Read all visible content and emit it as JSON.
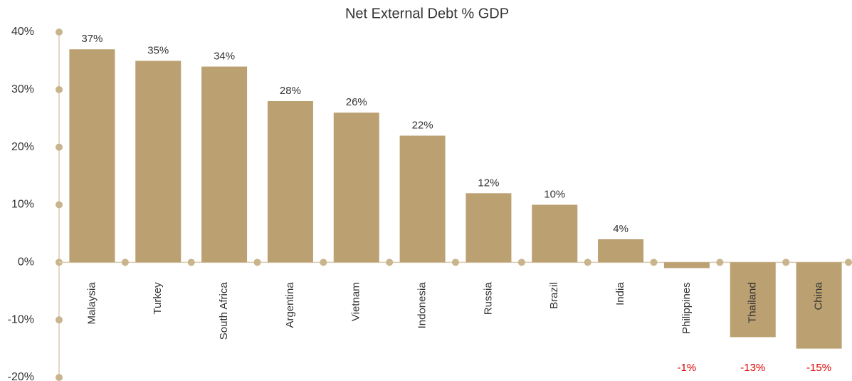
{
  "chart_data": {
    "type": "bar",
    "title": "Net External Debt % GDP",
    "categories": [
      "Malaysia",
      "Turkey",
      "South Africa",
      "Argentina",
      "Vietnam",
      "Indonesia",
      "Russia",
      "Brazil",
      "India",
      "Philippines",
      "Thailand",
      "China"
    ],
    "values": [
      37,
      35,
      34,
      28,
      26,
      22,
      12,
      10,
      4,
      -1,
      -13,
      -15
    ],
    "value_labels": [
      "37%",
      "35%",
      "34%",
      "28%",
      "26%",
      "22%",
      "12%",
      "10%",
      "4%",
      "-1%",
      "-13%",
      "-15%"
    ],
    "color": "#bba071",
    "negative_label_color": "#e00000",
    "ylim": [
      -20,
      40
    ],
    "yticks": [
      {
        "value": -20,
        "label": "-20%"
      },
      {
        "value": -10,
        "label": "-10%"
      },
      {
        "value": 0,
        "label": "0%"
      },
      {
        "value": 10,
        "label": "10%"
      },
      {
        "value": 20,
        "label": "20%"
      },
      {
        "value": 30,
        "label": "30%"
      },
      {
        "value": 40,
        "label": "40%"
      }
    ]
  }
}
